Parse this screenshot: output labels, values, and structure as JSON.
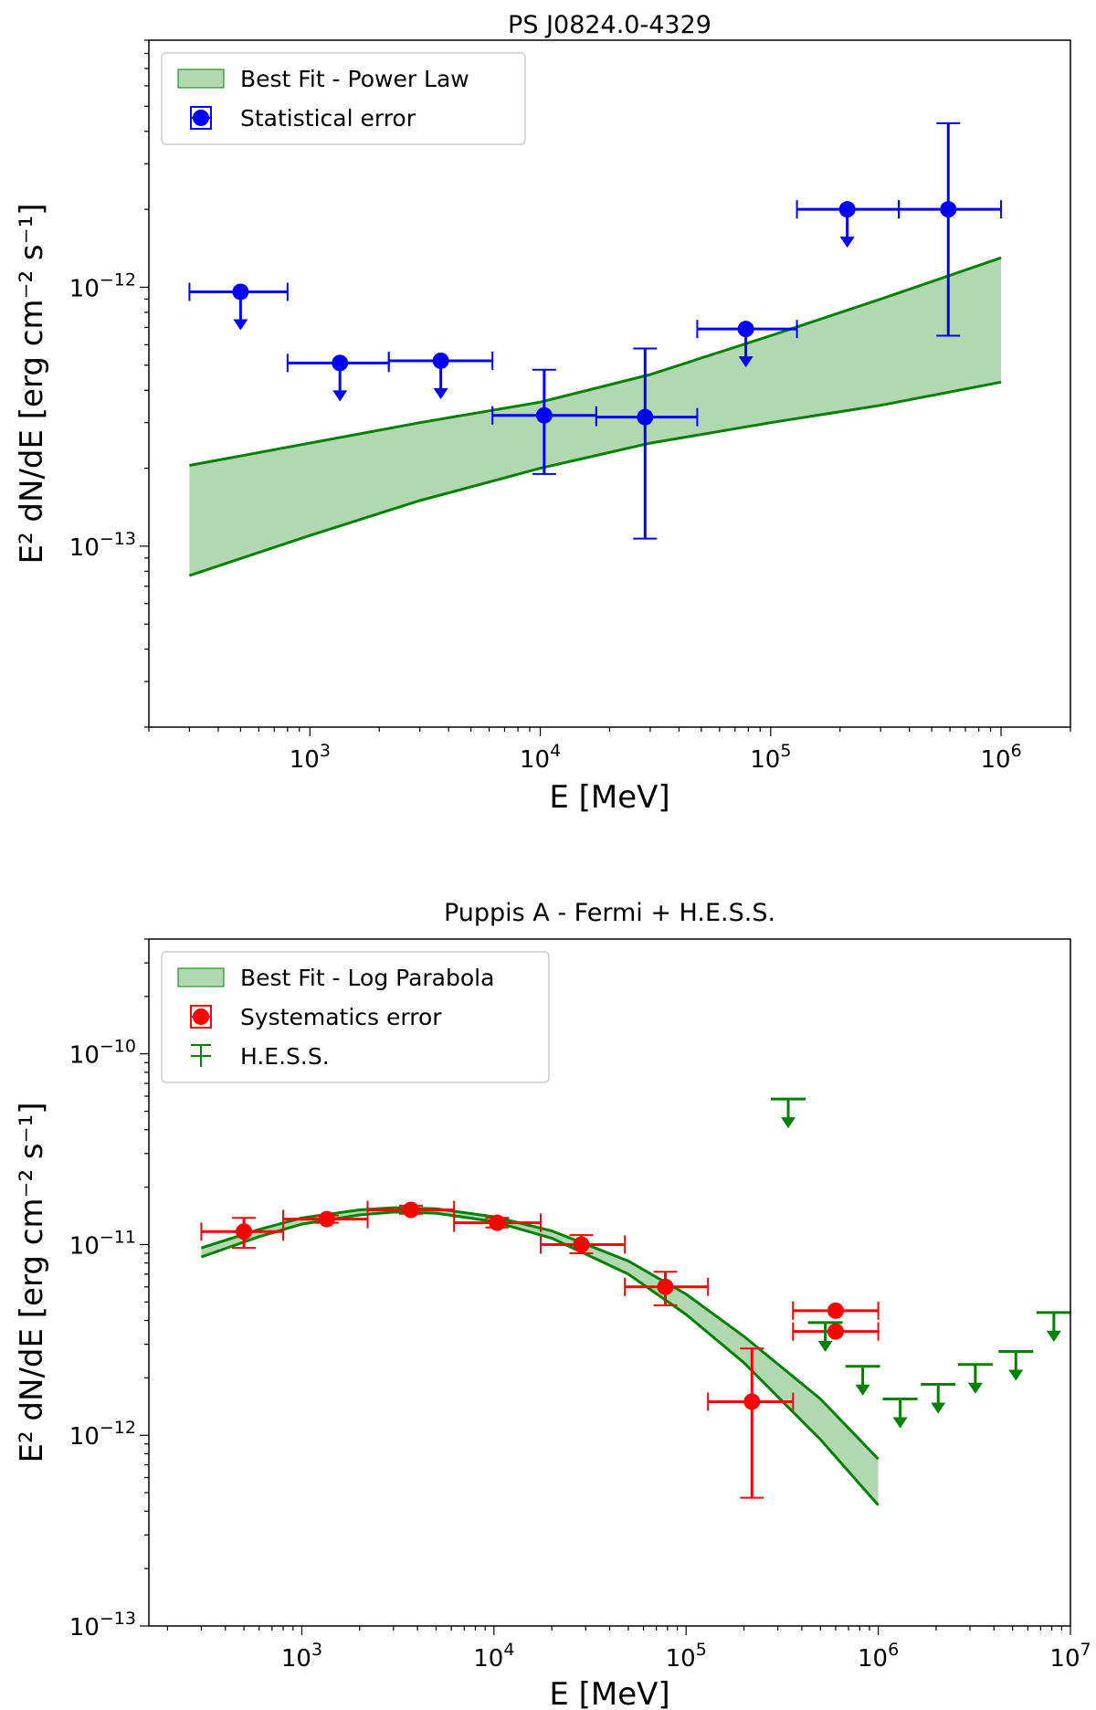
{
  "chart_data": [
    {
      "type": "scatter",
      "title": "PS J0824.0-4329",
      "xlabel": "E [MeV]",
      "ylabel": "E² dN/dE [erg cm⁻² s⁻¹]",
      "xscale": "log",
      "yscale": "log",
      "xlim": [
        200,
        2000000
      ],
      "ylim": [
        2e-14,
        9e-12
      ],
      "grid": false,
      "legend_position": "upper-left",
      "x_ticks": [
        {
          "value": 1000,
          "base": "10",
          "exp": "3"
        },
        {
          "value": 10000,
          "base": "10",
          "exp": "4"
        },
        {
          "value": 100000,
          "base": "10",
          "exp": "5"
        },
        {
          "value": 1000000,
          "base": "10",
          "exp": "6"
        }
      ],
      "y_ticks": [
        {
          "value": 1e-13,
          "base": "10",
          "exp": "−13"
        },
        {
          "value": 1e-12,
          "base": "10",
          "exp": "−12"
        }
      ],
      "band": {
        "name": "Best Fit - Power Law",
        "color": "#008000",
        "fill": "#b2d8b2",
        "x": [
          300,
          1000000
        ],
        "upper": [
          2.05e-13,
          1.3e-12
        ],
        "lower": [
          7.7e-14,
          4.3e-13
        ],
        "upper_mid": [
          {
            "x": 3000,
            "y": 3e-13
          },
          {
            "x": 10000,
            "y": 3.6e-13
          },
          {
            "x": 30000,
            "y": 4.6e-13
          },
          {
            "x": 100000,
            "y": 6.5e-13
          },
          {
            "x": 300000,
            "y": 9e-13
          }
        ],
        "lower_mid": [
          {
            "x": 1000,
            "y": 1.1e-13
          },
          {
            "x": 3000,
            "y": 1.5e-13
          },
          {
            "x": 10000,
            "y": 2e-13
          },
          {
            "x": 30000,
            "y": 2.5e-13
          },
          {
            "x": 100000,
            "y": 3e-13
          },
          {
            "x": 300000,
            "y": 3.5e-13
          }
        ]
      },
      "series": [
        {
          "name": "Statistical error",
          "color": "#0000ff",
          "points": [
            {
              "x": 500,
              "y": 9.6e-13,
              "xlo": 300,
              "xhi": 800,
              "upper_limit": true
            },
            {
              "x": 1350,
              "y": 5.1e-13,
              "xlo": 800,
              "xhi": 2200,
              "upper_limit": true
            },
            {
              "x": 3700,
              "y": 5.2e-13,
              "xlo": 2200,
              "xhi": 6200,
              "upper_limit": true
            },
            {
              "x": 10400,
              "y": 3.2e-13,
              "xlo": 6200,
              "xhi": 17500,
              "ylo": 1.9e-13,
              "yhi": 4.8e-13
            },
            {
              "x": 28500,
              "y": 3.15e-13,
              "xlo": 17500,
              "xhi": 48000,
              "ylo": 1.07e-13,
              "yhi": 5.8e-13
            },
            {
              "x": 78000,
              "y": 6.9e-13,
              "xlo": 48000,
              "xhi": 130000,
              "upper_limit": true
            },
            {
              "x": 215000,
              "y": 2e-12,
              "xlo": 130000,
              "xhi": 360000,
              "upper_limit": true
            },
            {
              "x": 590000,
              "y": 2e-12,
              "xlo": 360000,
              "xhi": 1000000,
              "ylo": 6.5e-13,
              "yhi": 4.3e-12
            }
          ]
        }
      ]
    },
    {
      "type": "scatter",
      "title": "Puppis A - Fermi + H.E.S.S.",
      "xlabel": "E [MeV]",
      "ylabel": "E² dN/dE [erg cm⁻² s⁻¹]",
      "xscale": "log",
      "yscale": "log",
      "xlim": [
        160,
        10000000
      ],
      "ylim": [
        1e-13,
        4e-10
      ],
      "grid": false,
      "legend_position": "upper-left",
      "x_ticks": [
        {
          "value": 1000,
          "base": "10",
          "exp": "3"
        },
        {
          "value": 10000,
          "base": "10",
          "exp": "4"
        },
        {
          "value": 100000,
          "base": "10",
          "exp": "5"
        },
        {
          "value": 1000000,
          "base": "10",
          "exp": "6"
        },
        {
          "value": 10000000,
          "base": "10",
          "exp": "7"
        }
      ],
      "y_ticks": [
        {
          "value": 1e-13,
          "base": "10",
          "exp": "−13"
        },
        {
          "value": 1e-12,
          "base": "10",
          "exp": "−12"
        },
        {
          "value": 1e-11,
          "base": "10",
          "exp": "−11"
        },
        {
          "value": 1e-10,
          "base": "10",
          "exp": "−10"
        }
      ],
      "band": {
        "name": "Best Fit - Log Parabola",
        "color": "#008000",
        "fill": "#b2d8b2",
        "upper": [
          {
            "x": 300,
            "y": 9.6e-12
          },
          {
            "x": 600,
            "y": 1.2e-11
          },
          {
            "x": 1000,
            "y": 1.38e-11
          },
          {
            "x": 2000,
            "y": 1.52e-11
          },
          {
            "x": 3000,
            "y": 1.56e-11
          },
          {
            "x": 5000,
            "y": 1.54e-11
          },
          {
            "x": 10000,
            "y": 1.4e-11
          },
          {
            "x": 20000,
            "y": 1.18e-11
          },
          {
            "x": 50000,
            "y": 8.2e-12
          },
          {
            "x": 100000,
            "y": 5.5e-12
          },
          {
            "x": 200000,
            "y": 3.3e-12
          },
          {
            "x": 500000,
            "y": 1.55e-12
          },
          {
            "x": 1000000,
            "y": 7.5e-13
          }
        ],
        "lower": [
          {
            "x": 300,
            "y": 8.6e-12
          },
          {
            "x": 600,
            "y": 1.1e-11
          },
          {
            "x": 1000,
            "y": 1.28e-11
          },
          {
            "x": 2000,
            "y": 1.43e-11
          },
          {
            "x": 3000,
            "y": 1.48e-11
          },
          {
            "x": 5000,
            "y": 1.46e-11
          },
          {
            "x": 10000,
            "y": 1.32e-11
          },
          {
            "x": 20000,
            "y": 1.08e-11
          },
          {
            "x": 50000,
            "y": 7e-12
          },
          {
            "x": 100000,
            "y": 4.3e-12
          },
          {
            "x": 200000,
            "y": 2.4e-12
          },
          {
            "x": 500000,
            "y": 9.5e-13
          },
          {
            "x": 1000000,
            "y": 4.3e-13
          }
        ]
      },
      "series": [
        {
          "name": "Systematics error",
          "color": "#ff0000",
          "points": [
            {
              "x": 500,
              "y": 1.17e-11,
              "xlo": 300,
              "xhi": 800,
              "ylo": 9.6e-12,
              "yhi": 1.38e-11
            },
            {
              "x": 1350,
              "y": 1.36e-11,
              "xlo": 800,
              "xhi": 2200,
              "ylo": 1.3e-11,
              "yhi": 1.42e-11
            },
            {
              "x": 3700,
              "y": 1.52e-11,
              "xlo": 2200,
              "xhi": 6200,
              "ylo": 1.45e-11,
              "yhi": 1.6e-11
            },
            {
              "x": 10400,
              "y": 1.3e-11,
              "xlo": 6200,
              "xhi": 17500,
              "ylo": 1.23e-11,
              "yhi": 1.38e-11
            },
            {
              "x": 28500,
              "y": 1e-11,
              "xlo": 17500,
              "xhi": 48000,
              "ylo": 9e-12,
              "yhi": 1.12e-11
            },
            {
              "x": 78000,
              "y": 6e-12,
              "xlo": 48000,
              "xhi": 130000,
              "ylo": 4.8e-12,
              "yhi": 7.2e-12
            },
            {
              "x": 220000,
              "y": 1.5e-12,
              "xlo": 130000,
              "xhi": 360000,
              "ylo": 4.7e-13,
              "yhi": 2.85e-12
            },
            {
              "x": 600000,
              "y": 4.5e-12,
              "xlo": 360000,
              "xhi": 1000000
            },
            {
              "x": 600000,
              "y": 3.5e-12,
              "xlo": 360000,
              "xhi": 1000000
            }
          ]
        },
        {
          "name": "H.E.S.S.",
          "color": "#008000",
          "upper_limits": [
            {
              "x": 340000,
              "y": 5.8e-11
            },
            {
              "x": 530000,
              "y": 3.9e-12
            },
            {
              "x": 830000,
              "y": 2.3e-12
            },
            {
              "x": 1300000,
              "y": 1.55e-12
            },
            {
              "x": 2050000,
              "y": 1.85e-12
            },
            {
              "x": 3200000,
              "y": 2.35e-12
            },
            {
              "x": 5200000,
              "y": 2.75e-12
            },
            {
              "x": 8200000,
              "y": 4.4e-12
            }
          ]
        }
      ]
    }
  ]
}
